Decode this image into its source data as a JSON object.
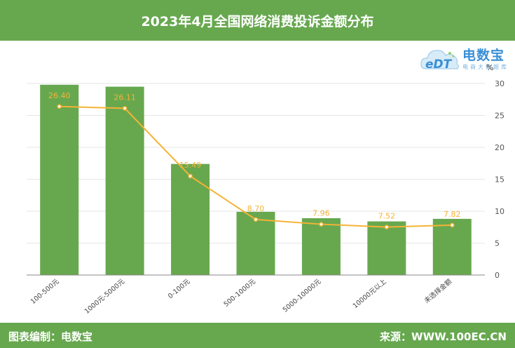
{
  "header": {
    "title": "2023年4月全国网络消费投诉金额分布"
  },
  "footer": {
    "left": "图表编制：电数宝",
    "right": "来源：WWW.100EC.CN"
  },
  "logo": {
    "brand": "电数宝",
    "sub": "电商大数据库",
    "mark": "eDT"
  },
  "colors": {
    "bar": "#67a84f",
    "line": "#f5b335",
    "header": "#67a84f"
  },
  "chart_data": {
    "type": "bar",
    "categories": [
      "100-500元",
      "1000元-5000元",
      "0-100元",
      "500-1000元",
      "5000-10000元",
      "10000元以上",
      "未选择金额"
    ],
    "series": [
      {
        "type": "bar",
        "values": [
          29.8,
          29.5,
          17.4,
          9.9,
          8.9,
          8.4,
          8.8
        ]
      },
      {
        "type": "line",
        "values": [
          26.4,
          26.11,
          15.49,
          8.7,
          7.96,
          7.52,
          7.82
        ],
        "labels": [
          "26.40",
          "26.11",
          "15.49",
          "8.70",
          "7.96",
          "7.52",
          "7.82"
        ]
      }
    ],
    "y_unit": "%",
    "ylim": [
      0,
      30
    ],
    "yticks": [
      0,
      5,
      10,
      15,
      20,
      25,
      30
    ],
    "grid": true,
    "y_axis_position": "right"
  }
}
